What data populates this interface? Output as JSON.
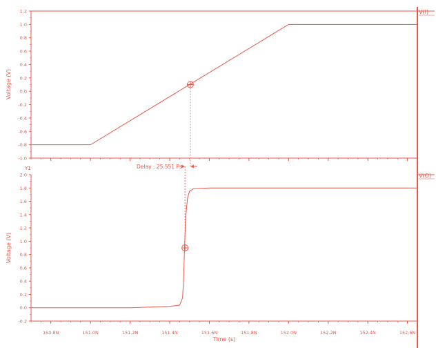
{
  "chart_data": [
    {
      "type": "line",
      "series": [
        {
          "name": "V(I)",
          "color": "#e8564a",
          "points": [
            [
              150.7,
              -0.8
            ],
            [
              151.0,
              -0.8
            ],
            [
              152.0,
              1.0
            ],
            [
              152.65,
              1.0
            ]
          ]
        }
      ],
      "ylabel": "Voltage (V)",
      "ylim": [
        -1.0,
        1.2
      ],
      "yticks": [
        "1.2",
        "1.0",
        "0.8",
        "0.6",
        "0.4",
        "0.2",
        "0.0",
        "-0.2",
        "-0.4",
        "-0.6",
        "-0.8",
        "-1.0"
      ],
      "marker": {
        "x": 151.504,
        "y": 0.1
      }
    },
    {
      "type": "line",
      "series": [
        {
          "name": "V(O)",
          "color": "#e8564a",
          "points": [
            [
              150.7,
              0.0
            ],
            [
              151.2,
              0.0
            ],
            [
              151.4,
              0.02
            ],
            [
              151.45,
              0.04
            ],
            [
              151.465,
              0.15
            ],
            [
              151.47,
              0.45
            ],
            [
              151.475,
              0.9
            ],
            [
              151.48,
              1.35
            ],
            [
              151.49,
              1.65
            ],
            [
              151.5,
              1.75
            ],
            [
              151.52,
              1.79
            ],
            [
              151.6,
              1.8
            ],
            [
              152.65,
              1.8
            ]
          ]
        }
      ],
      "ylabel": "Voltage (V)",
      "y_top_label": "Y1",
      "ylim": [
        -0.2,
        2.0
      ],
      "yticks": [
        "2.0",
        "1.8",
        "1.6",
        "1.4",
        "1.2",
        "1.0",
        "0.8",
        "0.6",
        "0.4",
        "0.2",
        "0.0",
        "-0.2"
      ],
      "marker": {
        "x": 151.477,
        "y": 0.9
      }
    }
  ],
  "shared_x": {
    "label": "Time (s)",
    "ticks": [
      {
        "v": 150.8,
        "label": "150.8N"
      },
      {
        "v": 151.0,
        "label": "151.0N"
      },
      {
        "v": 151.2,
        "label": "151.2N"
      },
      {
        "v": 151.4,
        "label": "151.4N"
      },
      {
        "v": 151.6,
        "label": "151.6N"
      },
      {
        "v": 151.8,
        "label": "151.8N"
      },
      {
        "v": 152.0,
        "label": "152.0N"
      },
      {
        "v": 152.2,
        "label": "152.2N"
      },
      {
        "v": 152.4,
        "label": "152.4N"
      },
      {
        "v": 152.6,
        "label": "152.6N"
      }
    ],
    "xlim": [
      150.7,
      152.65
    ]
  },
  "delay_annotation": "Delay : 25.551 Ps",
  "color": "#e8564a"
}
